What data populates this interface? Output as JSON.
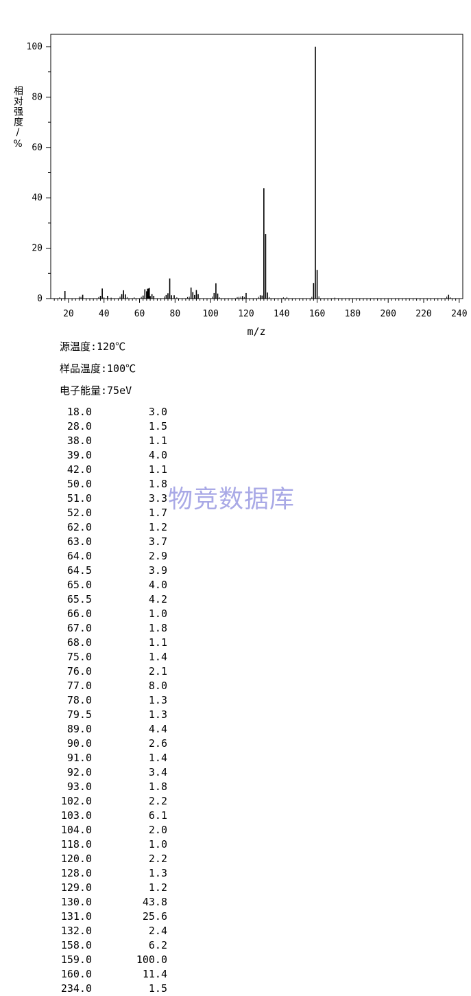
{
  "chart_data": {
    "type": "bar",
    "xlabel": "m/z",
    "ylabel": "相对强度/%",
    "xlim": [
      10,
      242
    ],
    "ylim": [
      0,
      105
    ],
    "xticks": [
      20,
      40,
      60,
      80,
      100,
      120,
      140,
      160,
      180,
      200,
      220,
      240
    ],
    "yticks": [
      0,
      20,
      40,
      60,
      80,
      100
    ],
    "grid": false,
    "bar_color": "#000000",
    "peaks": [
      {
        "mz": "18.0",
        "intensity": "3.0"
      },
      {
        "mz": "28.0",
        "intensity": "1.5"
      },
      {
        "mz": "38.0",
        "intensity": "1.1"
      },
      {
        "mz": "39.0",
        "intensity": "4.0"
      },
      {
        "mz": "42.0",
        "intensity": "1.1"
      },
      {
        "mz": "50.0",
        "intensity": "1.8"
      },
      {
        "mz": "51.0",
        "intensity": "3.3"
      },
      {
        "mz": "52.0",
        "intensity": "1.7"
      },
      {
        "mz": "62.0",
        "intensity": "1.2"
      },
      {
        "mz": "63.0",
        "intensity": "3.7"
      },
      {
        "mz": "64.0",
        "intensity": "2.9"
      },
      {
        "mz": "64.5",
        "intensity": "3.9"
      },
      {
        "mz": "65.0",
        "intensity": "4.0"
      },
      {
        "mz": "65.5",
        "intensity": "4.2"
      },
      {
        "mz": "66.0",
        "intensity": "1.0"
      },
      {
        "mz": "67.0",
        "intensity": "1.8"
      },
      {
        "mz": "68.0",
        "intensity": "1.1"
      },
      {
        "mz": "75.0",
        "intensity": "1.4"
      },
      {
        "mz": "76.0",
        "intensity": "2.1"
      },
      {
        "mz": "77.0",
        "intensity": "8.0"
      },
      {
        "mz": "78.0",
        "intensity": "1.3"
      },
      {
        "mz": "79.5",
        "intensity": "1.3"
      },
      {
        "mz": "89.0",
        "intensity": "4.4"
      },
      {
        "mz": "90.0",
        "intensity": "2.6"
      },
      {
        "mz": "91.0",
        "intensity": "1.4"
      },
      {
        "mz": "92.0",
        "intensity": "3.4"
      },
      {
        "mz": "93.0",
        "intensity": "1.8"
      },
      {
        "mz": "102.0",
        "intensity": "2.2"
      },
      {
        "mz": "103.0",
        "intensity": "6.1"
      },
      {
        "mz": "104.0",
        "intensity": "2.0"
      },
      {
        "mz": "118.0",
        "intensity": "1.0"
      },
      {
        "mz": "120.0",
        "intensity": "2.2"
      },
      {
        "mz": "128.0",
        "intensity": "1.3"
      },
      {
        "mz": "129.0",
        "intensity": "1.2"
      },
      {
        "mz": "130.0",
        "intensity": "43.8"
      },
      {
        "mz": "131.0",
        "intensity": "25.6"
      },
      {
        "mz": "132.0",
        "intensity": "2.4"
      },
      {
        "mz": "158.0",
        "intensity": "6.2"
      },
      {
        "mz": "159.0",
        "intensity": "100.0"
      },
      {
        "mz": "160.0",
        "intensity": "11.4"
      },
      {
        "mz": "234.0",
        "intensity": "1.5"
      }
    ],
    "minor_peaks": [
      {
        "mz": 15,
        "intensity": 0.5
      },
      {
        "mz": 26,
        "intensity": 0.8
      },
      {
        "mz": 27,
        "intensity": 0.7
      },
      {
        "mz": 37,
        "intensity": 0.6
      },
      {
        "mz": 40,
        "intensity": 0.5
      },
      {
        "mz": 44,
        "intensity": 0.4
      },
      {
        "mz": 49,
        "intensity": 0.8
      },
      {
        "mz": 53,
        "intensity": 0.6
      },
      {
        "mz": 57,
        "intensity": 0.5
      },
      {
        "mz": 61,
        "intensity": 0.7
      },
      {
        "mz": 74,
        "intensity": 0.9
      },
      {
        "mz": 81,
        "intensity": 0.5
      },
      {
        "mz": 87,
        "intensity": 0.6
      },
      {
        "mz": 88,
        "intensity": 0.8
      },
      {
        "mz": 101,
        "intensity": 0.8
      },
      {
        "mz": 105,
        "intensity": 0.5
      },
      {
        "mz": 115,
        "intensity": 0.6
      },
      {
        "mz": 116,
        "intensity": 0.7
      },
      {
        "mz": 117,
        "intensity": 0.8
      },
      {
        "mz": 119,
        "intensity": 0.6
      },
      {
        "mz": 127,
        "intensity": 0.7
      },
      {
        "mz": 133,
        "intensity": 0.6
      },
      {
        "mz": 141,
        "intensity": 0.5
      },
      {
        "mz": 143,
        "intensity": 0.6
      },
      {
        "mz": 157,
        "intensity": 0.7
      },
      {
        "mz": 161,
        "intensity": 0.9
      },
      {
        "mz": 170,
        "intensity": 0.4
      },
      {
        "mz": 233,
        "intensity": 0.8
      },
      {
        "mz": 235,
        "intensity": 0.5
      }
    ]
  },
  "conditions": {
    "source_temp": "源温度:120℃",
    "sample_temp": "样品温度:100℃",
    "electron_energy": "电子能量:75eV"
  },
  "watermark": "物竞数据库"
}
